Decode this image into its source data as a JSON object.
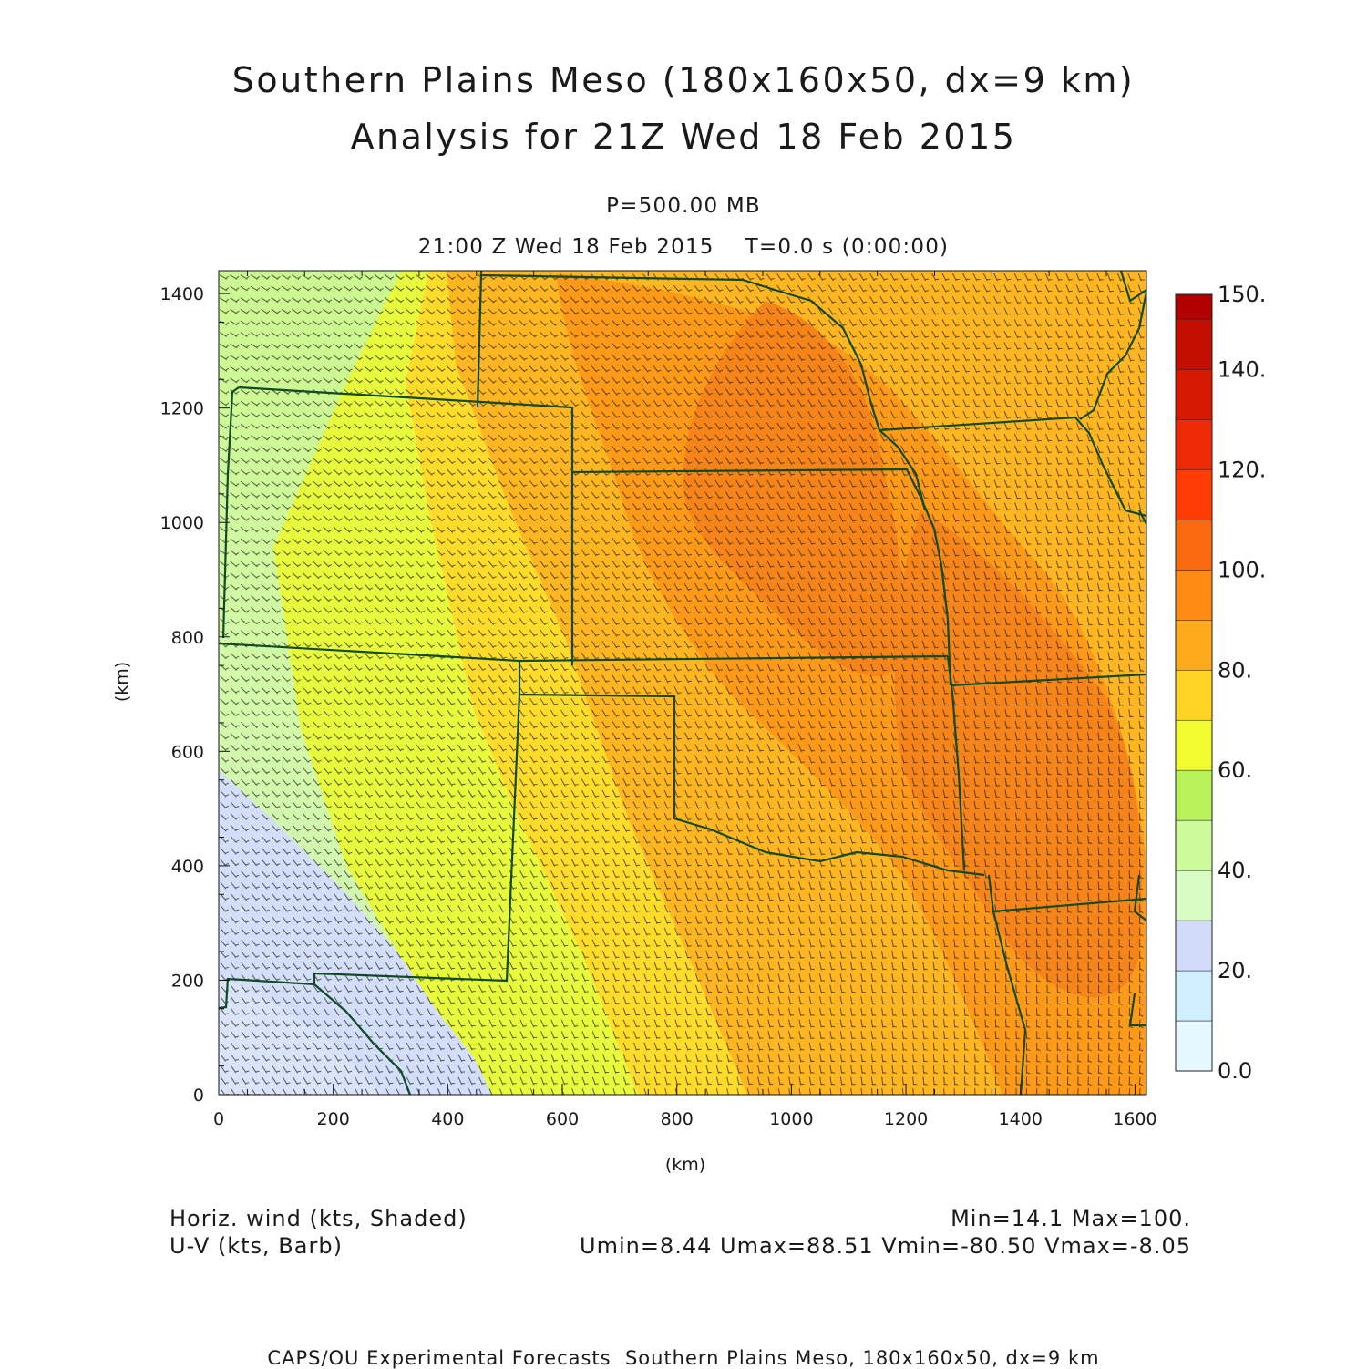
{
  "titles": {
    "line1": "Southern Plains Meso (180x160x50, dx=9 km)",
    "line2": "Analysis for 21Z Wed 18 Feb 2015",
    "level": "P=500.00 MB",
    "time": "21:00 Z Wed 18 Feb 2015    T=0.0 s (0:00:00)"
  },
  "axes": {
    "xlabel": "(km)",
    "ylabel": "(km)",
    "x_ticks": [
      "0",
      "200",
      "400",
      "600",
      "800",
      "1000",
      "1200",
      "1400",
      "1600"
    ],
    "y_ticks": [
      "0",
      "200",
      "400",
      "600",
      "800",
      "1000",
      "1200",
      "1400"
    ],
    "x_range": [
      0,
      1620
    ],
    "y_range": [
      0,
      1440
    ]
  },
  "colorbar": {
    "labels": [
      "0.0",
      "20.",
      "40.",
      "60.",
      "80.",
      "100.",
      "120.",
      "140.",
      "150."
    ],
    "colors": [
      "#e6f8ff",
      "#cfefff",
      "#d0dcfa",
      "#d7fcc4",
      "#cdfb9b",
      "#b7f25a",
      "#f2fb2e",
      "#ffd424",
      "#ffaa1c",
      "#ff8a14",
      "#fb6a10",
      "#ff3c06",
      "#ec2a06",
      "#d61a02",
      "#c40e00",
      "#b00000"
    ]
  },
  "legend": {
    "field1": "Horiz. wind (kts, Shaded)",
    "field2": "U-V (kts, Barb)",
    "stats1": "Min=14.1 Max=100.",
    "stats2": "Umin=8.44 Umax=88.51 Vmin=-80.50 Vmax=-8.05"
  },
  "footer": "CAPS/OU Experimental Forecasts  Southern Plains Meso, 180x160x50, dx=9 km"
}
